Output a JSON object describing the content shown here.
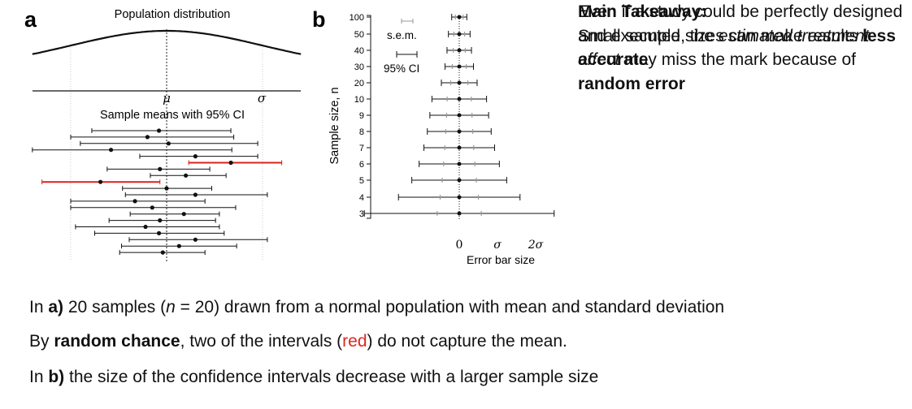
{
  "chart_data": [
    {
      "panel": "a",
      "type": "scatter",
      "title": "Population distribution",
      "subtitle": "Sample means with 95% CI",
      "axis_labels": {
        "mu": "μ",
        "sigma": "σ"
      },
      "population": {
        "mean": 0,
        "sd": 1
      },
      "intervals": [
        {
          "mean": -0.08,
          "low": -0.78,
          "high": 0.67,
          "color": "black"
        },
        {
          "mean": -0.2,
          "low": -1.0,
          "high": 0.7,
          "color": "black"
        },
        {
          "mean": 0.02,
          "low": -0.9,
          "high": 0.95,
          "color": "black"
        },
        {
          "mean": -0.58,
          "low": -1.4,
          "high": 0.68,
          "color": "black"
        },
        {
          "mean": 0.3,
          "low": -0.28,
          "high": 0.95,
          "color": "black"
        },
        {
          "mean": 0.67,
          "low": 0.23,
          "high": 1.2,
          "color": "red"
        },
        {
          "mean": -0.07,
          "low": -0.62,
          "high": 0.45,
          "color": "black"
        },
        {
          "mean": 0.2,
          "low": -0.17,
          "high": 0.62,
          "color": "black"
        },
        {
          "mean": -0.69,
          "low": -1.3,
          "high": -0.07,
          "color": "red"
        },
        {
          "mean": 0.0,
          "low": -0.46,
          "high": 0.47,
          "color": "black"
        },
        {
          "mean": 0.3,
          "low": -0.43,
          "high": 1.05,
          "color": "black"
        },
        {
          "mean": -0.33,
          "low": -1.0,
          "high": 0.4,
          "color": "black"
        },
        {
          "mean": -0.15,
          "low": -1.0,
          "high": 0.72,
          "color": "black"
        },
        {
          "mean": 0.18,
          "low": -0.38,
          "high": 0.55,
          "color": "black"
        },
        {
          "mean": -0.07,
          "low": -0.6,
          "high": 0.51,
          "color": "black"
        },
        {
          "mean": -0.22,
          "low": -0.95,
          "high": 0.55,
          "color": "black"
        },
        {
          "mean": -0.08,
          "low": -0.75,
          "high": 0.6,
          "color": "black"
        },
        {
          "mean": 0.3,
          "low": -0.39,
          "high": 1.05,
          "color": "black"
        },
        {
          "mean": 0.13,
          "low": -0.47,
          "high": 0.73,
          "color": "black"
        },
        {
          "mean": -0.04,
          "low": -0.49,
          "high": 0.4,
          "color": "black"
        }
      ]
    },
    {
      "panel": "b",
      "type": "errorbar",
      "ylabel": "Sample size, n",
      "xlabel": "Error bar size",
      "x_ticks": [
        "0",
        "σ",
        "2σ"
      ],
      "legend": [
        "s.e.m.",
        "95% CI"
      ],
      "sample_sizes": [
        "100",
        "50",
        "40",
        "30",
        "20",
        "10",
        "9",
        "8",
        "7",
        "6",
        "5",
        "4",
        "3"
      ],
      "sem": [
        0.1,
        0.1414,
        0.1581,
        0.1826,
        0.2236,
        0.3162,
        0.3333,
        0.3536,
        0.378,
        0.4082,
        0.4472,
        0.5,
        0.5774
      ],
      "ci95": [
        0.198,
        0.284,
        0.32,
        0.373,
        0.468,
        0.715,
        0.769,
        0.836,
        0.925,
        1.05,
        1.242,
        1.591,
        2.484
      ]
    }
  ],
  "panel_labels": {
    "a": "a",
    "b": "b"
  },
  "side_text": {
    "p1_a": "Even if a study could be perfectly designed and executed, the ",
    "p1_em": "estimated treatment effect",
    "p1_b": " may miss the mark because of ",
    "p1_bold": "random error",
    "takeaway_title": "Main Takeaway:",
    "takeaway_a": "Small sample sizes can make results ",
    "takeaway_bold": "less accurate"
  },
  "bottom_text": {
    "l1_a": "In ",
    "l1_bold": "a)",
    "l1_b": " 20 samples (",
    "l1_n": "n",
    "l1_c": " = 20) drawn from a normal population with mean and standard deviation",
    "l2_a": "By ",
    "l2_bold": "random chance",
    "l2_b": ", two of the intervals (",
    "l2_red": "red",
    "l2_c": ") do not capture the mean.",
    "l3_a": "In ",
    "l3_bold": "b)",
    "l3_b": " the size of the confidence intervals decrease with a larger sample size"
  }
}
